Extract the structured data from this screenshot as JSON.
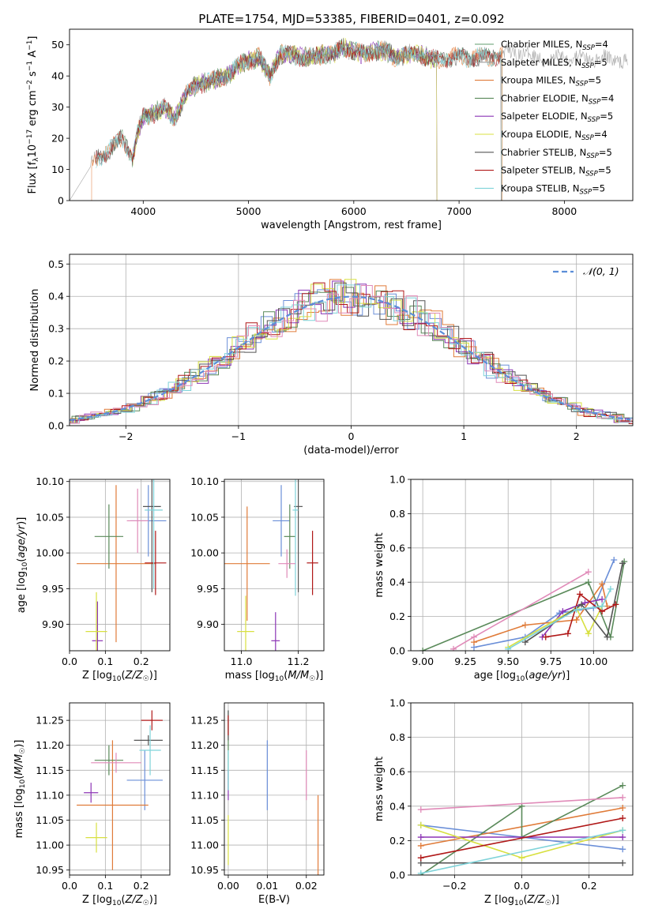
{
  "figure": {
    "title": "PLATE=1754, MJD=53385, FIBERID=0401, z=0.092"
  },
  "chart_data": [
    {
      "id": "spectrum",
      "type": "line",
      "xlabel": "wavelength [Angstrom, rest frame]",
      "ylabel": "Flux [f_λ 10^-17 erg cm^-2 s^-1 A^-1]",
      "xlim": [
        3300,
        8650
      ],
      "ylim": [
        0,
        55
      ],
      "xticks": [
        4000,
        5000,
        6000,
        7000,
        8000
      ],
      "yticks": [
        0,
        10,
        20,
        30,
        40,
        50
      ],
      "grid": false,
      "legend": "right",
      "data_shape": [
        [
          3500,
          12
        ],
        [
          3600,
          14
        ],
        [
          3700,
          17
        ],
        [
          3800,
          20
        ],
        [
          3900,
          14
        ],
        [
          3950,
          22
        ],
        [
          4000,
          27
        ],
        [
          4100,
          28
        ],
        [
          4200,
          30
        ],
        [
          4300,
          26
        ],
        [
          4400,
          34
        ],
        [
          4500,
          37
        ],
        [
          4600,
          38
        ],
        [
          4700,
          39
        ],
        [
          4800,
          40
        ],
        [
          4900,
          43
        ],
        [
          5000,
          45
        ],
        [
          5100,
          46
        ],
        [
          5200,
          40
        ],
        [
          5300,
          47
        ],
        [
          5400,
          47
        ],
        [
          5500,
          46
        ],
        [
          5600,
          46
        ],
        [
          5700,
          47
        ],
        [
          5800,
          47
        ],
        [
          5900,
          49
        ],
        [
          6000,
          48
        ],
        [
          6100,
          47
        ],
        [
          6200,
          48
        ],
        [
          6300,
          48
        ],
        [
          6400,
          46
        ],
        [
          6500,
          47
        ],
        [
          6600,
          47
        ],
        [
          6700,
          46
        ],
        [
          6800,
          45
        ],
        [
          6900,
          46
        ],
        [
          7000,
          46
        ],
        [
          7100,
          46
        ],
        [
          7200,
          46
        ],
        [
          7300,
          46
        ],
        [
          7400,
          47
        ],
        [
          7500,
          47
        ],
        [
          7600,
          48
        ],
        [
          7700,
          46
        ],
        [
          7800,
          46
        ],
        [
          7900,
          45
        ],
        [
          8000,
          47
        ],
        [
          8100,
          46
        ],
        [
          8200,
          45
        ],
        [
          8300,
          46
        ],
        [
          8400,
          45
        ],
        [
          8500,
          46
        ],
        [
          8600,
          44
        ]
      ],
      "series": [
        {
          "label": "Chabrier MILES, N",
          "sub": "SSP",
          "suffix": "=4",
          "color": "#5f9e6e",
          "range": [
            3550,
            7410
          ]
        },
        {
          "label": "Salpeter MILES, N",
          "sub": "SSP",
          "suffix": "=5",
          "color": "#9e9e9e",
          "range": [
            3300,
            8650
          ]
        },
        {
          "label": "Kroupa MILES, N",
          "sub": "SSP",
          "suffix": "=5",
          "color": "#e07b39",
          "range": [
            3510,
            7410
          ]
        },
        {
          "label": "Chabrier ELODIE, N",
          "sub": "SSP",
          "suffix": "=4",
          "color": "#5a8a5a",
          "range": [
            3900,
            6790
          ]
        },
        {
          "label": "Salpeter ELODIE, N",
          "sub": "SSP",
          "suffix": "=5",
          "color": "#8c35b5",
          "range": [
            3900,
            6790
          ]
        },
        {
          "label": "Kroupa ELODIE, N",
          "sub": "SSP",
          "suffix": "=4",
          "color": "#d8e040",
          "range": [
            3900,
            6790
          ]
        },
        {
          "label": "Chabrier STELIB, N",
          "sub": "SSP",
          "suffix": "=5",
          "color": "#555555",
          "range": [
            3550,
            7400
          ]
        },
        {
          "label": "Salpeter STELIB, N",
          "sub": "SSP",
          "suffix": "=5",
          "color": "#b01818",
          "range": [
            3550,
            7400
          ]
        },
        {
          "label": "Kroupa STELIB, N",
          "sub": "SSP",
          "suffix": "=5",
          "color": "#7fd3d9",
          "range": [
            3550,
            7400
          ]
        }
      ]
    },
    {
      "id": "residuals",
      "type": "histogram",
      "xlabel": "(data-model)/error",
      "ylabel": "Normed distribution",
      "xlim": [
        -2.5,
        2.5
      ],
      "ylim": [
        0,
        0.53
      ],
      "xticks": [
        -2,
        -1,
        0,
        1,
        2
      ],
      "yticks": [
        0.0,
        0.1,
        0.2,
        0.3,
        0.4,
        0.5
      ],
      "grid": true,
      "legend_label": "𝒩(0, 1)",
      "bin_width": 0.1,
      "colors": [
        "#6b8fd8",
        "#e07b39",
        "#5a8a5a",
        "#8c35b5",
        "#d8e040",
        "#555555",
        "#b01818",
        "#7fd3d9",
        "#e08ab8"
      ]
    },
    {
      "id": "age-vs-Z",
      "type": "errorbar",
      "xlabel": "Z [log10(Z/Z☉)]",
      "ylabel": "age  [log10(age/yr)]",
      "xlim": [
        0,
        0.28
      ],
      "ylim": [
        9.863,
        10.103
      ],
      "xticks": [
        0.0,
        0.1,
        0.2
      ],
      "yticks": [
        9.9,
        9.95,
        10.0,
        10.05,
        10.1
      ],
      "grid": true,
      "points": [
        {
          "x": 0.22,
          "y": 10.045,
          "xerr": 0.05,
          "yerr": 0.05,
          "color": "#6b8fd8"
        },
        {
          "x": 0.13,
          "y": 9.985,
          "xerr": 0.11,
          "yerr": 0.11,
          "color": "#e07b39"
        },
        {
          "x": 0.11,
          "y": 10.023,
          "xerr": 0.04,
          "yerr": 0.045,
          "color": "#5a8a5a"
        },
        {
          "x": 0.078,
          "y": 9.877,
          "xerr": 0.015,
          "yerr": 0.055,
          "color": "#8c35b5"
        },
        {
          "x": 0.075,
          "y": 9.89,
          "xerr": 0.03,
          "yerr": 0.055,
          "color": "#d8e040"
        },
        {
          "x": 0.23,
          "y": 10.065,
          "xerr": 0.025,
          "yerr": 0.12,
          "color": "#555555"
        },
        {
          "x": 0.24,
          "y": 9.986,
          "xerr": 0.03,
          "yerr": 0.045,
          "color": "#b01818"
        },
        {
          "x": 0.235,
          "y": 10.06,
          "xerr": 0.025,
          "yerr": 0.11,
          "color": "#7fd3d9"
        },
        {
          "x": 0.19,
          "y": 10.045,
          "xerr": 0.03,
          "yerr": 0.045,
          "color": "#e08ab8"
        }
      ]
    },
    {
      "id": "age-vs-mass",
      "type": "errorbar",
      "xlabel": "mass [log10(M/M☉)]",
      "ylabel": "",
      "xlim": [
        10.94,
        11.29
      ],
      "ylim": [
        9.863,
        10.103
      ],
      "xticks": [
        11.0,
        11.2
      ],
      "yticks": [
        9.9,
        9.95,
        10.0,
        10.05,
        10.1
      ],
      "grid": true,
      "points": [
        {
          "x": 11.14,
          "y": 10.045,
          "xerr": 0.03,
          "yerr": 0.05,
          "color": "#6b8fd8"
        },
        {
          "x": 11.02,
          "y": 9.985,
          "xerr": 0.08,
          "yerr": 0.08,
          "color": "#e07b39"
        },
        {
          "x": 11.17,
          "y": 10.023,
          "xerr": 0.02,
          "yerr": 0.045,
          "color": "#5a8a5a"
        },
        {
          "x": 11.12,
          "y": 9.877,
          "xerr": 0.015,
          "yerr": 0.04,
          "color": "#8c35b5"
        },
        {
          "x": 11.015,
          "y": 9.89,
          "xerr": 0.03,
          "yerr": 0.05,
          "color": "#d8e040"
        },
        {
          "x": 11.2,
          "y": 10.065,
          "xerr": 0.015,
          "yerr": 0.12,
          "color": "#555555"
        },
        {
          "x": 11.25,
          "y": 9.986,
          "xerr": 0.02,
          "yerr": 0.045,
          "color": "#b01818"
        },
        {
          "x": 11.19,
          "y": 10.06,
          "xerr": 0.01,
          "yerr": 0.12,
          "color": "#7fd3d9"
        },
        {
          "x": 11.16,
          "y": 9.985,
          "xerr": 0.03,
          "yerr": 0.02,
          "color": "#e08ab8"
        }
      ]
    },
    {
      "id": "weight-vs-age",
      "type": "line",
      "xlabel": "age  [log10(age/yr)]",
      "ylabel": "mass weight",
      "xlim": [
        8.93,
        10.23
      ],
      "ylim": [
        0,
        1
      ],
      "xticks": [
        9.0,
        9.25,
        9.5,
        9.75,
        10.0
      ],
      "yticks": [
        0.0,
        0.2,
        0.4,
        0.6,
        0.8,
        1.0
      ],
      "grid": true,
      "series": [
        {
          "color": "#6b8fd8",
          "points": [
            [
              9.3,
              0.02
            ],
            [
              9.6,
              0.08
            ],
            [
              9.8,
              0.22
            ],
            [
              10.0,
              0.25
            ],
            [
              10.12,
              0.53
            ]
          ]
        },
        {
          "color": "#e07b39",
          "points": [
            [
              9.3,
              0.05
            ],
            [
              9.6,
              0.15
            ],
            [
              9.9,
              0.18
            ],
            [
              10.05,
              0.39
            ],
            [
              10.08,
              0.26
            ]
          ]
        },
        {
          "color": "#5a8a5a",
          "points": [
            [
              9.0,
              0.0
            ],
            [
              9.97,
              0.4
            ],
            [
              10.1,
              0.08
            ],
            [
              10.18,
              0.52
            ]
          ]
        },
        {
          "color": "#8c35b5",
          "points": [
            [
              9.7,
              0.08
            ],
            [
              9.82,
              0.23
            ],
            [
              9.95,
              0.28
            ],
            [
              10.05,
              0.3
            ]
          ]
        },
        {
          "color": "#d8e040",
          "points": [
            [
              9.5,
              0.02
            ],
            [
              9.9,
              0.25
            ],
            [
              9.97,
              0.1
            ],
            [
              10.05,
              0.26
            ]
          ]
        },
        {
          "color": "#555555",
          "points": [
            [
              9.6,
              0.05
            ],
            [
              9.93,
              0.27
            ],
            [
              10.08,
              0.08
            ],
            [
              10.17,
              0.51
            ]
          ]
        },
        {
          "color": "#b01818",
          "points": [
            [
              9.72,
              0.08
            ],
            [
              9.85,
              0.1
            ],
            [
              9.92,
              0.33
            ],
            [
              10.05,
              0.23
            ],
            [
              10.13,
              0.27
            ]
          ]
        },
        {
          "color": "#7fd3d9",
          "points": [
            [
              9.5,
              0.01
            ],
            [
              9.9,
              0.24
            ],
            [
              10.05,
              0.26
            ],
            [
              10.1,
              0.36
            ]
          ]
        },
        {
          "color": "#e08ab8",
          "points": [
            [
              9.18,
              0.01
            ],
            [
              9.3,
              0.08
            ],
            [
              9.97,
              0.46
            ]
          ]
        }
      ]
    },
    {
      "id": "mass-vs-Z",
      "type": "errorbar",
      "xlabel": "Z [log10(Z/Z☉)]",
      "ylabel": "mass [log10(M/M☉)]",
      "xlim": [
        0,
        0.28
      ],
      "ylim": [
        10.94,
        11.285
      ],
      "xticks": [
        0.0,
        0.1,
        0.2
      ],
      "yticks": [
        10.95,
        11.0,
        11.05,
        11.1,
        11.15,
        11.2,
        11.25
      ],
      "grid": true,
      "points": [
        {
          "x": 0.21,
          "y": 11.13,
          "xerr": 0.05,
          "yerr": 0.06,
          "color": "#6b8fd8"
        },
        {
          "x": 0.12,
          "y": 11.08,
          "xerr": 0.1,
          "yerr": 0.13,
          "color": "#e07b39"
        },
        {
          "x": 0.11,
          "y": 11.17,
          "xerr": 0.04,
          "yerr": 0.03,
          "color": "#5a8a5a"
        },
        {
          "x": 0.06,
          "y": 11.105,
          "xerr": 0.02,
          "yerr": 0.02,
          "color": "#8c35b5"
        },
        {
          "x": 0.075,
          "y": 11.015,
          "xerr": 0.03,
          "yerr": 0.03,
          "color": "#d8e040"
        },
        {
          "x": 0.22,
          "y": 11.21,
          "xerr": 0.04,
          "yerr": 0.01,
          "color": "#555555"
        },
        {
          "x": 0.23,
          "y": 11.25,
          "xerr": 0.03,
          "yerr": 0.02,
          "color": "#b01818"
        },
        {
          "x": 0.225,
          "y": 11.19,
          "xerr": 0.03,
          "yerr": 0.05,
          "color": "#7fd3d9"
        },
        {
          "x": 0.13,
          "y": 11.165,
          "xerr": 0.07,
          "yerr": 0.02,
          "color": "#e08ab8"
        }
      ]
    },
    {
      "id": "mass-vs-ebv",
      "type": "errorbar",
      "xlabel": "E(B-V)",
      "ylabel": "",
      "xlim": [
        -0.001,
        0.0245
      ],
      "ylim": [
        10.94,
        11.285
      ],
      "xticks": [
        0.0,
        0.01,
        0.02
      ],
      "yticks": [
        10.95,
        11.0,
        11.05,
        11.1,
        11.15,
        11.2,
        11.25
      ],
      "grid": true,
      "points": [
        {
          "x": 0.01,
          "y": 11.14,
          "xerr": 0,
          "yerr": 0.07,
          "color": "#6b8fd8"
        },
        {
          "x": 0.023,
          "y": 11.02,
          "xerr": 0,
          "yerr": 0.08,
          "color": "#e07b39"
        },
        {
          "x": 0.0,
          "y": 11.19,
          "xerr": 0,
          "yerr": 0.08,
          "color": "#5a8a5a"
        },
        {
          "x": 0.0,
          "y": 11.12,
          "xerr": 0,
          "yerr": 0.03,
          "color": "#8c35b5"
        },
        {
          "x": 0.0,
          "y": 11.01,
          "xerr": 0,
          "yerr": 0.05,
          "color": "#d8e040"
        },
        {
          "x": 0.0,
          "y": 11.24,
          "xerr": 0,
          "yerr": 0.03,
          "color": "#555555"
        },
        {
          "x": 0.0,
          "y": 11.24,
          "xerr": 0,
          "yerr": 0.02,
          "color": "#b01818"
        },
        {
          "x": 0.0,
          "y": 11.15,
          "xerr": 0,
          "yerr": 0.04,
          "color": "#7fd3d9"
        },
        {
          "x": 0.02,
          "y": 11.14,
          "xerr": 0,
          "yerr": 0.05,
          "color": "#e08ab8"
        }
      ]
    },
    {
      "id": "weight-vs-Z",
      "type": "line",
      "xlabel": "Z [log10(Z/Z☉)]",
      "ylabel": "mass weight",
      "xlim": [
        -0.33,
        0.33
      ],
      "ylim": [
        0,
        1
      ],
      "xticks": [
        -0.2,
        0.0,
        0.2
      ],
      "yticks": [
        0.0,
        0.2,
        0.4,
        0.6,
        0.8,
        1.0
      ],
      "grid": true,
      "series": [
        {
          "color": "#6b8fd8",
          "points": [
            [
              -0.3,
              0.29
            ],
            [
              0.3,
              0.15
            ]
          ]
        },
        {
          "color": "#e07b39",
          "points": [
            [
              -0.3,
              0.17
            ],
            [
              0.3,
              0.39
            ]
          ]
        },
        {
          "color": "#5a8a5a",
          "points": [
            [
              -0.3,
              0.0
            ],
            [
              0.0,
              0.4
            ],
            [
              0.0,
              0.22
            ],
            [
              0.3,
              0.52
            ]
          ]
        },
        {
          "color": "#8c35b5",
          "points": [
            [
              -0.3,
              0.22
            ],
            [
              0.3,
              0.22
            ]
          ]
        },
        {
          "color": "#d8e040",
          "points": [
            [
              -0.3,
              0.29
            ],
            [
              0.0,
              0.1
            ],
            [
              0.3,
              0.26
            ]
          ]
        },
        {
          "color": "#555555",
          "points": [
            [
              -0.3,
              0.07
            ],
            [
              0.3,
              0.07
            ]
          ]
        },
        {
          "color": "#b01818",
          "points": [
            [
              -0.3,
              0.1
            ],
            [
              0.3,
              0.33
            ]
          ]
        },
        {
          "color": "#7fd3d9",
          "points": [
            [
              -0.3,
              0.01
            ],
            [
              0.3,
              0.26
            ]
          ]
        },
        {
          "color": "#e08ab8",
          "points": [
            [
              -0.3,
              0.38
            ],
            [
              0.3,
              0.45
            ]
          ]
        }
      ]
    }
  ]
}
